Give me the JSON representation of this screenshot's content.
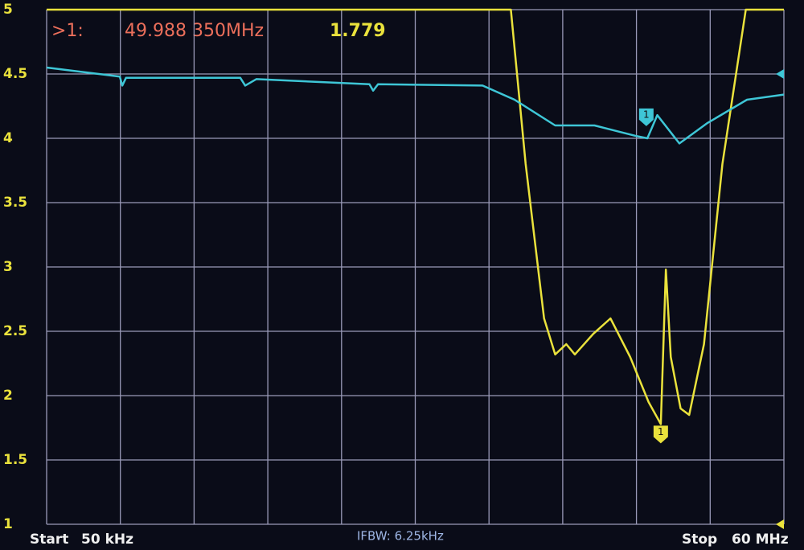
{
  "chart_data": {
    "type": "line",
    "marker": {
      "label": ">1:",
      "frequency": "49.988 350MHz",
      "value": 1.779,
      "id": "1"
    },
    "start_label": "Start",
    "start_value": "50 kHz",
    "stop_label": "Stop",
    "stop_value": "60 MHz",
    "ifbw": "IFBW: 6.25kHz",
    "xlim": [
      0.05,
      60
    ],
    "ylim": [
      1,
      5
    ],
    "yticks": [
      1,
      1.5,
      2,
      2.5,
      3,
      3.5,
      4,
      4.5,
      5
    ],
    "grid": true,
    "series": [
      {
        "color": "#eae23c",
        "x": [
          0.05,
          10,
          20,
          30,
          37.8,
          39,
          40.5,
          41.4,
          42.3,
          43,
          44.5,
          45.9,
          47.5,
          49.0,
          49.988,
          50.4,
          50.8,
          51.6,
          52.3,
          53.5,
          55,
          56.9,
          60
        ],
        "values": [
          5,
          5,
          5,
          5,
          5,
          3.8,
          2.6,
          2.32,
          2.4,
          2.32,
          2.48,
          2.6,
          2.3,
          1.95,
          1.779,
          2.98,
          2.3,
          1.9,
          1.85,
          2.4,
          3.8,
          5,
          5
        ]
      },
      {
        "color": "#3ec6d6",
        "x": [
          0.05,
          6.0,
          6.2,
          6.5,
          15.8,
          16.2,
          17.1,
          26.3,
          26.6,
          27,
          35.5,
          38.1,
          41.4,
          44.6,
          47.9,
          48.9,
          49.7,
          51.5,
          53.8,
          57,
          60
        ],
        "values": [
          4.55,
          4.48,
          4.41,
          4.47,
          4.47,
          4.41,
          4.46,
          4.42,
          4.37,
          4.42,
          4.41,
          4.3,
          4.1,
          4.1,
          4.02,
          4.0,
          4.18,
          3.96,
          4.12,
          4.3,
          4.34
        ]
      }
    ]
  }
}
